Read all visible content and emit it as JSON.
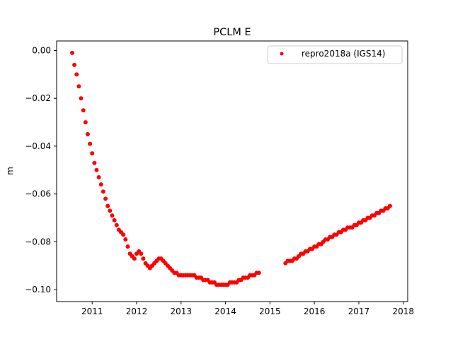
{
  "chart_data": {
    "type": "scatter",
    "title": "PCLM E",
    "xlabel": "",
    "ylabel": "m",
    "xlim": [
      2010.2,
      2018.1
    ],
    "ylim": [
      -0.105,
      0.004
    ],
    "x_ticks": [
      2011,
      2012,
      2013,
      2014,
      2015,
      2016,
      2017,
      2018
    ],
    "x_tick_labels": [
      "2011",
      "2012",
      "2013",
      "2014",
      "2015",
      "2016",
      "2017",
      "2018"
    ],
    "y_ticks": [
      0.0,
      -0.02,
      -0.04,
      -0.06,
      -0.08,
      -0.1
    ],
    "y_tick_labels": [
      "0.00",
      "−0.02",
      "−0.04",
      "−0.06",
      "−0.08",
      "−0.10"
    ],
    "legend_position": "top-right",
    "grid": false,
    "series": [
      {
        "name": "repro2018a (IGS14)",
        "color": "#ff0000",
        "marker": "circle",
        "x": [
          2010.55,
          2010.6,
          2010.65,
          2010.7,
          2010.75,
          2010.8,
          2010.85,
          2010.9,
          2010.95,
          2011.0,
          2011.05,
          2011.1,
          2011.15,
          2011.2,
          2011.25,
          2011.3,
          2011.35,
          2011.4,
          2011.45,
          2011.5,
          2011.55,
          2011.6,
          2011.65,
          2011.7,
          2011.75,
          2011.8,
          2011.85,
          2011.9,
          2011.95,
          2012.0,
          2012.05,
          2012.1,
          2012.15,
          2012.2,
          2012.25,
          2012.3,
          2012.35,
          2012.4,
          2012.45,
          2012.5,
          2012.55,
          2012.6,
          2012.65,
          2012.7,
          2012.75,
          2012.8,
          2012.85,
          2012.9,
          2012.95,
          2013.0,
          2013.05,
          2013.1,
          2013.15,
          2013.2,
          2013.25,
          2013.3,
          2013.35,
          2013.4,
          2013.45,
          2013.5,
          2013.55,
          2013.6,
          2013.65,
          2013.7,
          2013.75,
          2013.8,
          2013.85,
          2013.9,
          2013.95,
          2014.0,
          2014.05,
          2014.1,
          2014.15,
          2014.2,
          2014.25,
          2014.3,
          2014.35,
          2014.4,
          2014.45,
          2014.5,
          2014.55,
          2014.6,
          2014.65,
          2014.7,
          2014.75,
          2015.35,
          2015.4,
          2015.45,
          2015.5,
          2015.55,
          2015.6,
          2015.65,
          2015.7,
          2015.75,
          2015.8,
          2015.85,
          2015.9,
          2015.95,
          2016.0,
          2016.05,
          2016.1,
          2016.15,
          2016.2,
          2016.25,
          2016.3,
          2016.35,
          2016.4,
          2016.45,
          2016.5,
          2016.55,
          2016.6,
          2016.65,
          2016.7,
          2016.75,
          2016.8,
          2016.85,
          2016.9,
          2016.95,
          2017.0,
          2017.05,
          2017.1,
          2017.15,
          2017.2,
          2017.25,
          2017.3,
          2017.35,
          2017.4,
          2017.45,
          2017.5,
          2017.55,
          2017.6,
          2017.65,
          2017.7
        ],
        "y": [
          -0.001,
          -0.006,
          -0.01,
          -0.015,
          -0.02,
          -0.025,
          -0.03,
          -0.035,
          -0.039,
          -0.043,
          -0.047,
          -0.05,
          -0.053,
          -0.056,
          -0.059,
          -0.062,
          -0.065,
          -0.067,
          -0.069,
          -0.071,
          -0.073,
          -0.075,
          -0.076,
          -0.077,
          -0.079,
          -0.082,
          -0.085,
          -0.086,
          -0.087,
          -0.085,
          -0.084,
          -0.085,
          -0.087,
          -0.089,
          -0.09,
          -0.091,
          -0.09,
          -0.089,
          -0.088,
          -0.087,
          -0.087,
          -0.088,
          -0.089,
          -0.09,
          -0.091,
          -0.092,
          -0.093,
          -0.093,
          -0.094,
          -0.094,
          -0.094,
          -0.094,
          -0.094,
          -0.094,
          -0.094,
          -0.094,
          -0.095,
          -0.095,
          -0.095,
          -0.096,
          -0.096,
          -0.096,
          -0.097,
          -0.097,
          -0.097,
          -0.098,
          -0.098,
          -0.098,
          -0.098,
          -0.098,
          -0.098,
          -0.097,
          -0.097,
          -0.097,
          -0.097,
          -0.096,
          -0.096,
          -0.095,
          -0.095,
          -0.095,
          -0.094,
          -0.094,
          -0.094,
          -0.093,
          -0.093,
          -0.089,
          -0.088,
          -0.088,
          -0.088,
          -0.087,
          -0.087,
          -0.086,
          -0.085,
          -0.085,
          -0.084,
          -0.084,
          -0.083,
          -0.083,
          -0.082,
          -0.082,
          -0.081,
          -0.081,
          -0.08,
          -0.079,
          -0.079,
          -0.078,
          -0.078,
          -0.077,
          -0.077,
          -0.076,
          -0.076,
          -0.075,
          -0.075,
          -0.074,
          -0.074,
          -0.074,
          -0.073,
          -0.073,
          -0.072,
          -0.072,
          -0.071,
          -0.071,
          -0.07,
          -0.07,
          -0.069,
          -0.069,
          -0.068,
          -0.068,
          -0.067,
          -0.067,
          -0.066,
          -0.066,
          -0.065
        ]
      }
    ]
  }
}
